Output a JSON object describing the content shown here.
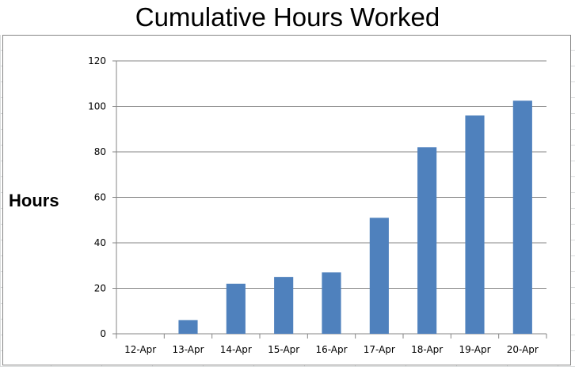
{
  "chart_data": {
    "type": "bar",
    "title": "Cumulative Hours Worked",
    "xlabel": "",
    "ylabel": "Hours",
    "categories": [
      "12-Apr",
      "13-Apr",
      "14-Apr",
      "15-Apr",
      "16-Apr",
      "17-Apr",
      "18-Apr",
      "19-Apr",
      "20-Apr"
    ],
    "values": [
      0,
      6,
      22,
      25,
      27,
      51,
      82,
      96,
      102.5
    ],
    "ylim": [
      0,
      120
    ],
    "yticks": [
      0,
      20,
      40,
      60,
      80,
      100,
      120
    ],
    "grid": true,
    "legend": "none",
    "colors": {
      "bar": "#4f81bd",
      "grid": "#868686",
      "axis": "#868686"
    }
  }
}
